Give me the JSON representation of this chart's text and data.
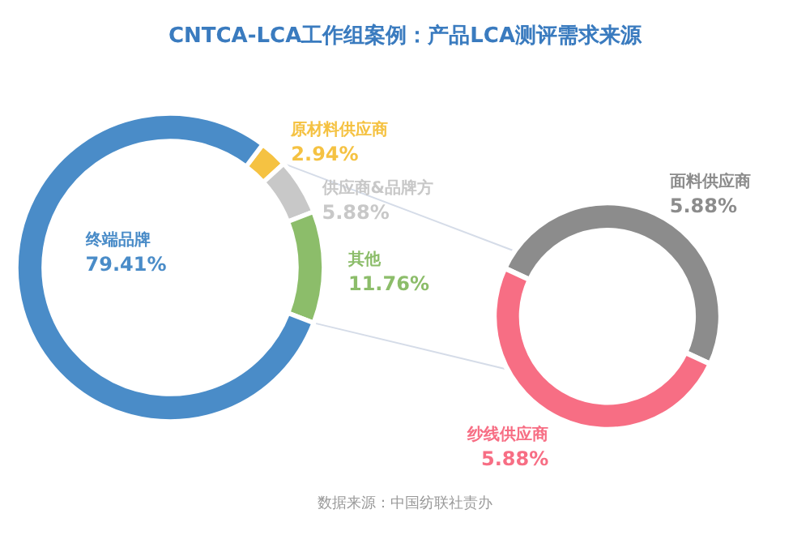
{
  "chart_data": [
    {
      "type": "donut",
      "title": "CNTCA-LCA工作组案例：产品LCA测评需求来源",
      "categories": [
        "原材料供应商",
        "供应商&品牌方",
        "其他",
        "终端品牌"
      ],
      "values": [
        2.94,
        5.88,
        11.76,
        79.41
      ],
      "colors": [
        "#f5c242",
        "#c8c8c8",
        "#8cbd6a",
        "#4a8cc8"
      ],
      "value_labels": [
        "2.94%",
        "5.88%",
        "11.76%",
        "79.41%"
      ],
      "annotations": [
        "数据来源：中国纺联社责办"
      ]
    },
    {
      "type": "donut",
      "categories": [
        "面料供应商",
        "纱线供应商"
      ],
      "values": [
        5.88,
        5.88
      ],
      "colors": [
        "#8c8c8c",
        "#f76e84"
      ],
      "value_labels": [
        "5.88%",
        "5.88%"
      ]
    }
  ]
}
